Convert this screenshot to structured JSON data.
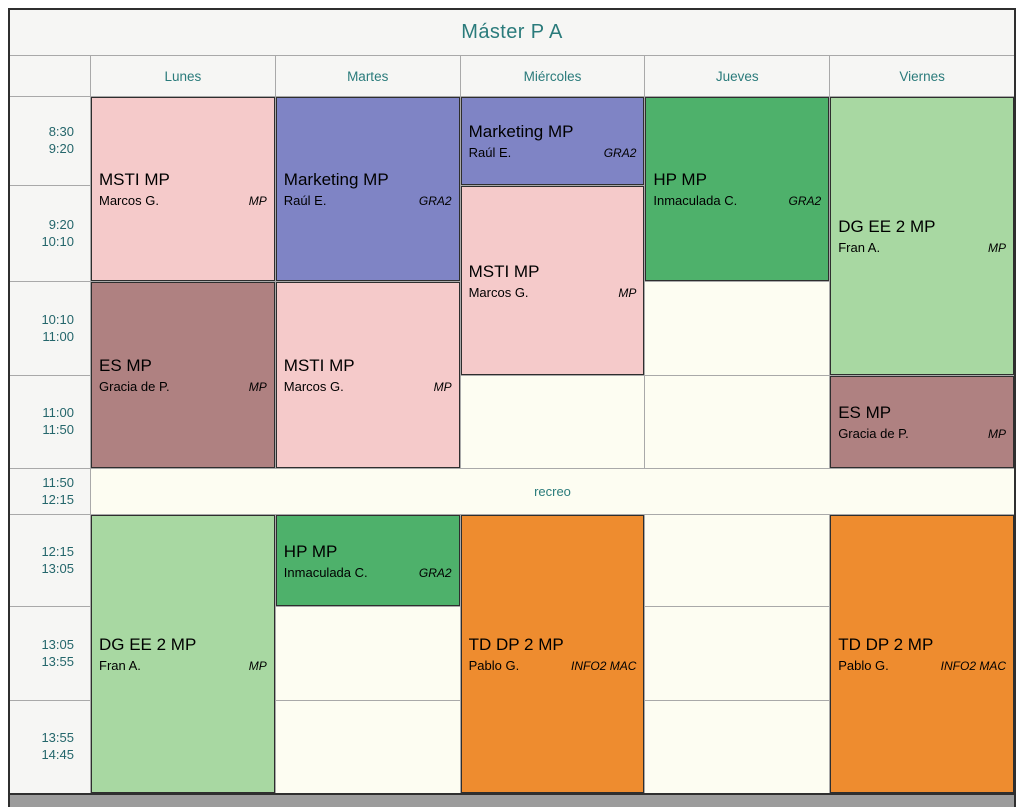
{
  "title": "Máster P A",
  "days": [
    "Lunes",
    "Martes",
    "Miércoles",
    "Jueves",
    "Viernes"
  ],
  "times": [
    {
      "start": "8:30",
      "end": "9:20"
    },
    {
      "start": "9:20",
      "end": "10:10"
    },
    {
      "start": "10:10",
      "end": "11:00"
    },
    {
      "start": "11:00",
      "end": "11:50"
    },
    {
      "start": "11:50",
      "end": "12:15"
    },
    {
      "start": "12:15",
      "end": "13:05"
    },
    {
      "start": "13:05",
      "end": "13:55"
    },
    {
      "start": "13:55",
      "end": "14:45"
    }
  ],
  "recreo_label": "recreo",
  "courses": {
    "msti": {
      "title": "MSTI MP",
      "teacher": "Marcos G.",
      "room": "MP",
      "color": "#F5CACA"
    },
    "marketing": {
      "title": "Marketing MP",
      "teacher": "Raúl E.",
      "room": "GRA2",
      "color": "#7F84C5"
    },
    "es": {
      "title": "ES MP",
      "teacher": "Gracia de P.",
      "room": "MP",
      "color": "#AF8181"
    },
    "hp": {
      "title": "HP MP",
      "teacher": "Inmaculada C.",
      "room": "GRA2",
      "color": "#4EB16B"
    },
    "dgee2": {
      "title": "DG EE 2 MP",
      "teacher": "Fran A.",
      "room": "MP",
      "color": "#A8D8A2"
    },
    "tddp2": {
      "title": "TD DP 2 MP",
      "teacher": "Pablo G.",
      "room": "INFO2 MAC",
      "color": "#EE8C2F"
    }
  },
  "colors": {
    "header_text": "#2A7B7B",
    "time_text": "#24666B",
    "empty_cell": "#FDFDF2",
    "header_bg": "#F6F6F4",
    "grid_line": "#A9A9A9"
  }
}
